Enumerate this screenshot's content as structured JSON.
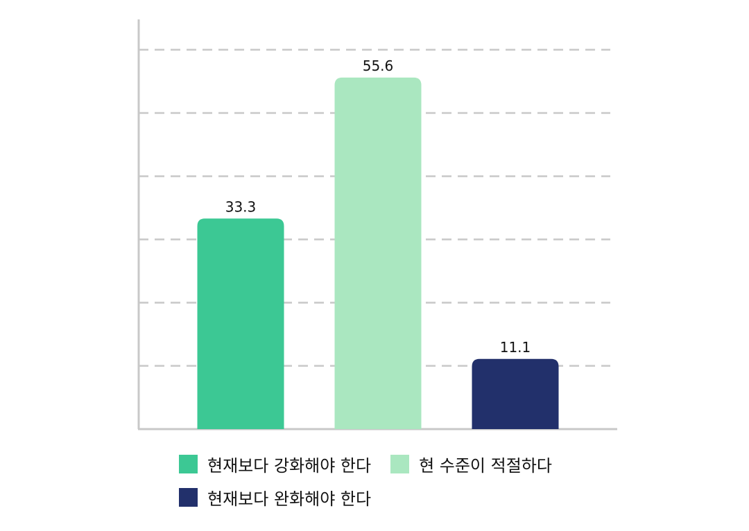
{
  "chart_data": {
    "type": "bar",
    "categories": [
      "현재보다 강화해야 한다",
      "현 수준이 적절하다",
      "현재보다 완화해야 한다"
    ],
    "values": [
      33.3,
      55.6,
      11.1
    ],
    "value_labels": [
      "33.3",
      "55.6",
      "11.1"
    ],
    "colors": [
      "#3cc894",
      "#aae7c0",
      "#22306b"
    ],
    "ylim": [
      0,
      60
    ],
    "grid": true,
    "legend_position": "bottom",
    "title": "",
    "xlabel": "",
    "ylabel": ""
  },
  "legend": {
    "items": [
      {
        "label": "현재보다 강화해야 한다",
        "color": "#3cc894"
      },
      {
        "label": "현 수준이 적절하다",
        "color": "#aae7c0"
      },
      {
        "label": "현재보다 완화해야 한다",
        "color": "#22306b"
      }
    ]
  }
}
